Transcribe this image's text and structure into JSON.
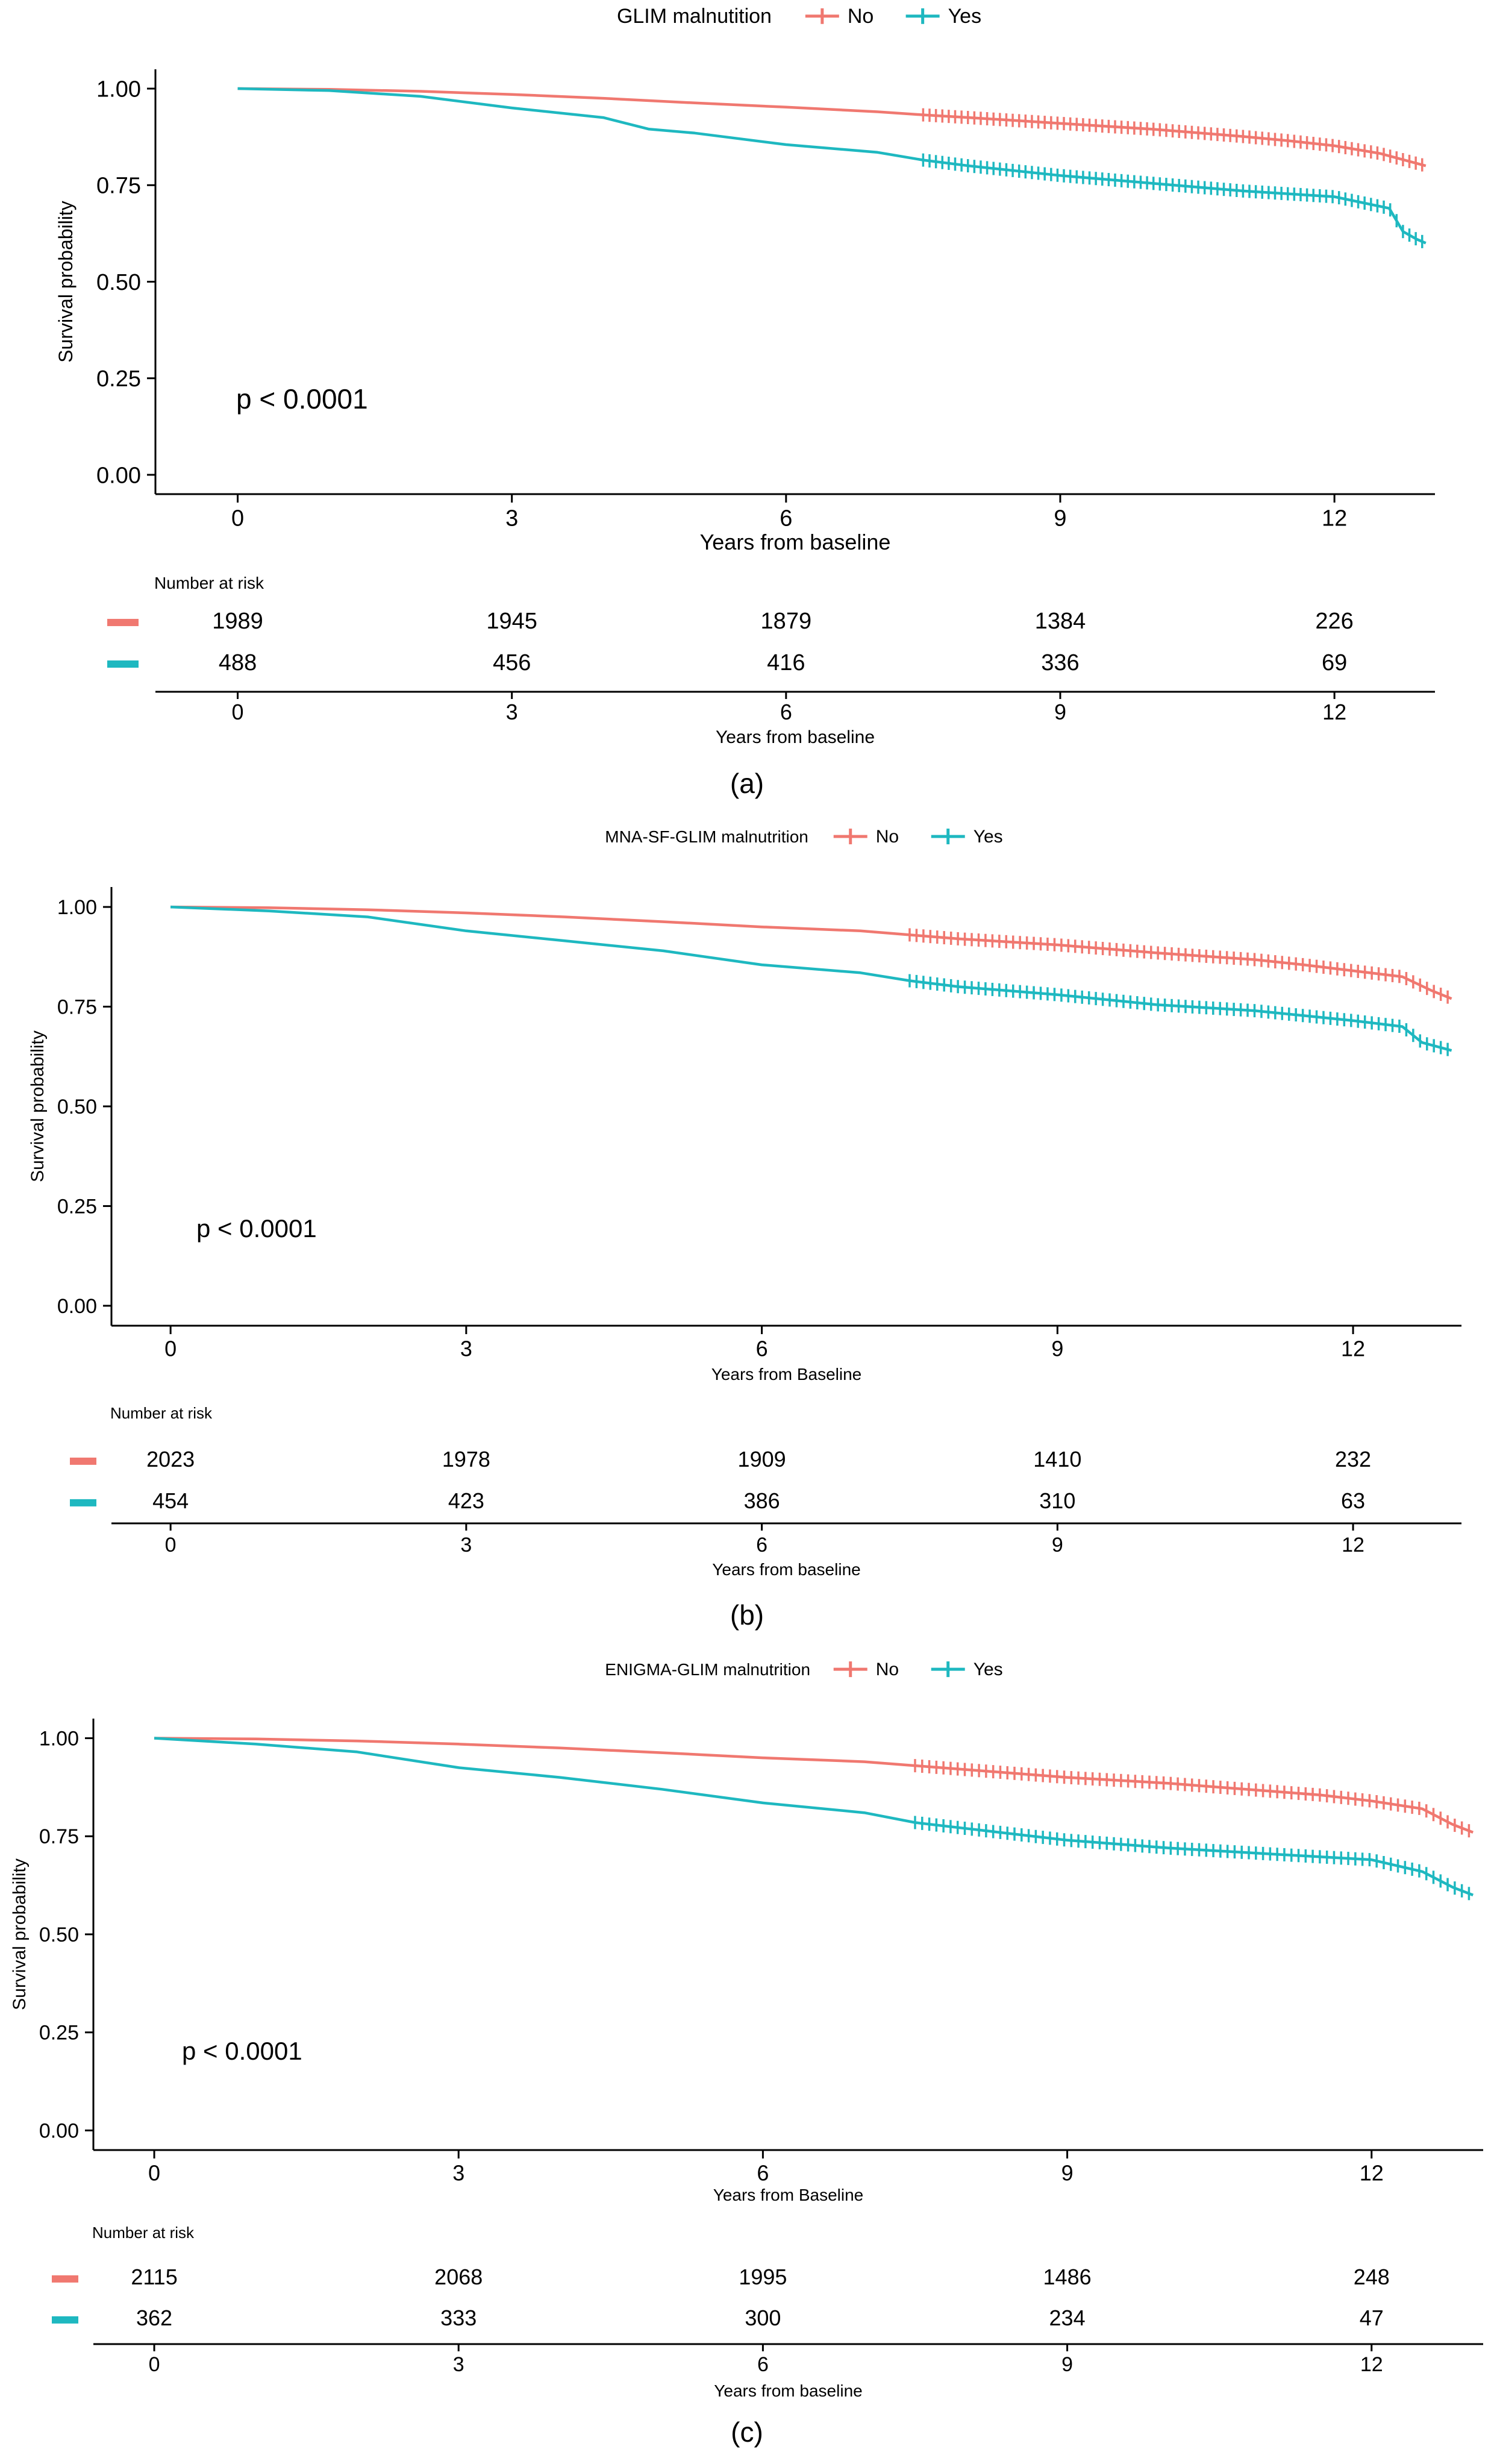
{
  "colors": {
    "no": "#F07870",
    "yes": "#1EB8C0",
    "axis": "#000000",
    "text": "#000000"
  },
  "chart_data": [
    {
      "type": "line",
      "panel_label": "(a)",
      "legend_title": "GLIM malnutition",
      "legend": [
        "No",
        "Yes"
      ],
      "pvalue": "p < 0.0001",
      "xlabel": "Years from baseline",
      "ylabel": "Survival probability",
      "xlim": [
        -0.9,
        13.1
      ],
      "ylim": [
        -0.05,
        1.05
      ],
      "x_ticks": [
        "0",
        "3",
        "6",
        "9",
        "12"
      ],
      "y_ticks": [
        "0.00",
        "0.25",
        "0.50",
        "0.75",
        "1.00"
      ],
      "series": [
        {
          "name": "No",
          "x": [
            0,
            1,
            2,
            3,
            4,
            5,
            6,
            7,
            7.5,
            8,
            9,
            10,
            11,
            11.5,
            12,
            12.5,
            13
          ],
          "values": [
            1,
            0.998,
            0.993,
            0.985,
            0.975,
            0.963,
            0.952,
            0.94,
            0.932,
            0.925,
            0.91,
            0.895,
            0.876,
            0.865,
            0.852,
            0.832,
            0.8
          ]
        },
        {
          "name": "Yes",
          "x": [
            0,
            1,
            2,
            3,
            4,
            4.5,
            5,
            6,
            7,
            7.5,
            8,
            9,
            10,
            11,
            12,
            12.6,
            12.75,
            12.9,
            13
          ],
          "values": [
            1,
            0.995,
            0.98,
            0.95,
            0.925,
            0.895,
            0.885,
            0.855,
            0.835,
            0.815,
            0.8,
            0.775,
            0.755,
            0.735,
            0.72,
            0.69,
            0.63,
            0.61,
            0.6
          ]
        }
      ],
      "risk_table": {
        "title": "Number at risk",
        "xlabel": "Years from baseline",
        "rows": [
          {
            "name": "No",
            "values": [
              "1989",
              "1945",
              "1879",
              "1384",
              "226"
            ]
          },
          {
            "name": "Yes",
            "values": [
              "488",
              "456",
              "416",
              "336",
              "69"
            ]
          }
        ]
      }
    },
    {
      "type": "line",
      "panel_label": "(b)",
      "legend_title": "MNA-SF-GLIM malnutrition",
      "legend": [
        "No",
        "Yes"
      ],
      "pvalue": "p < 0.0001",
      "xlabel": "Years from Baseline",
      "ylabel": "Survival probability",
      "xlim": [
        -0.6,
        13.1
      ],
      "ylim": [
        -0.05,
        1.05
      ],
      "x_ticks": [
        "0",
        "3",
        "6",
        "9",
        "12"
      ],
      "y_ticks": [
        "0.00",
        "0.25",
        "0.50",
        "0.75",
        "1.00"
      ],
      "series": [
        {
          "name": "No",
          "x": [
            0,
            1,
            2,
            3,
            4,
            5,
            6,
            7,
            7.5,
            8,
            9,
            10,
            11,
            11.5,
            12,
            12.5,
            12.8,
            13
          ],
          "values": [
            1,
            0.998,
            0.993,
            0.985,
            0.975,
            0.963,
            0.95,
            0.94,
            0.93,
            0.92,
            0.905,
            0.885,
            0.868,
            0.855,
            0.84,
            0.825,
            0.79,
            0.77
          ]
        },
        {
          "name": "Yes",
          "x": [
            0,
            1,
            2,
            3,
            4,
            5,
            6,
            7,
            7.5,
            8,
            9,
            10,
            11,
            12,
            12.5,
            12.7,
            13
          ],
          "values": [
            1,
            0.99,
            0.975,
            0.94,
            0.915,
            0.89,
            0.855,
            0.835,
            0.815,
            0.8,
            0.78,
            0.755,
            0.74,
            0.715,
            0.7,
            0.66,
            0.64
          ]
        }
      ],
      "risk_table": {
        "title": "Number at risk",
        "xlabel": "Years from baseline",
        "rows": [
          {
            "name": "No",
            "values": [
              "2023",
              "1978",
              "1909",
              "1410",
              "232"
            ]
          },
          {
            "name": "Yes",
            "values": [
              "454",
              "423",
              "386",
              "310",
              "63"
            ]
          }
        ]
      }
    },
    {
      "type": "line",
      "panel_label": "(c)",
      "legend_title": "ENIGMA-GLIM malnutrition",
      "legend": [
        "No",
        "Yes"
      ],
      "pvalue": "p < 0.0001",
      "xlabel": "Years from Baseline",
      "ylabel": "Survival probability",
      "xlim": [
        -0.6,
        13.1
      ],
      "ylim": [
        -0.05,
        1.05
      ],
      "x_ticks": [
        "0",
        "3",
        "6",
        "9",
        "12"
      ],
      "y_ticks": [
        "0.00",
        "0.25",
        "0.50",
        "0.75",
        "1.00"
      ],
      "series": [
        {
          "name": "No",
          "x": [
            0,
            1,
            2,
            3,
            4,
            5,
            6,
            7,
            7.5,
            8,
            9,
            10,
            11,
            11.5,
            12,
            12.5,
            12.8,
            13
          ],
          "values": [
            1,
            0.998,
            0.993,
            0.985,
            0.975,
            0.963,
            0.95,
            0.94,
            0.93,
            0.92,
            0.9,
            0.885,
            0.865,
            0.855,
            0.84,
            0.82,
            0.78,
            0.76
          ]
        },
        {
          "name": "Yes",
          "x": [
            0,
            1,
            2,
            3,
            4,
            5,
            6,
            7,
            7.5,
            8,
            9,
            10,
            11,
            12,
            12.5,
            12.8,
            13
          ],
          "values": [
            1,
            0.985,
            0.965,
            0.925,
            0.9,
            0.87,
            0.835,
            0.81,
            0.785,
            0.77,
            0.74,
            0.72,
            0.705,
            0.69,
            0.66,
            0.62,
            0.6
          ]
        }
      ],
      "risk_table": {
        "title": "Number at risk",
        "xlabel": "Years from baseline",
        "rows": [
          {
            "name": "No",
            "values": [
              "2115",
              "2068",
              "1995",
              "1486",
              "248"
            ]
          },
          {
            "name": "Yes",
            "values": [
              "362",
              "333",
              "300",
              "234",
              "47"
            ]
          }
        ]
      }
    }
  ]
}
